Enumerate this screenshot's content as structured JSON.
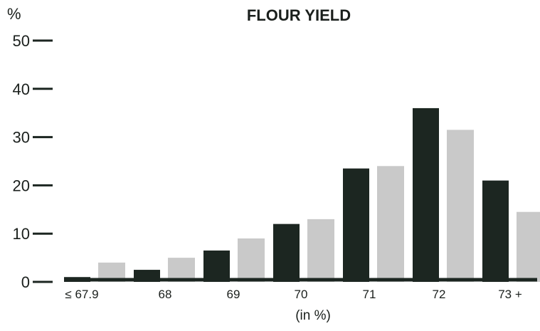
{
  "chart_data": {
    "type": "bar",
    "title": "FLOUR YIELD",
    "ylabel": "%",
    "xlabel": "(in %)",
    "ylim": [
      0,
      50
    ],
    "yticks": [
      "0",
      "10",
      "20",
      "30",
      "40",
      "50"
    ],
    "categories": [
      "≤ 67.9",
      "68",
      "69",
      "70",
      "71",
      "72",
      "73 +"
    ],
    "series": [
      {
        "values": [
          1,
          2.5,
          6.5,
          12,
          23.5,
          36,
          21
        ]
      },
      {
        "values": [
          4,
          5,
          9,
          13,
          24,
          31.5,
          14.5
        ]
      }
    ],
    "colors": [
      "#1c2621",
      "#c9c9c9"
    ],
    "grid": false,
    "legend": "none"
  }
}
